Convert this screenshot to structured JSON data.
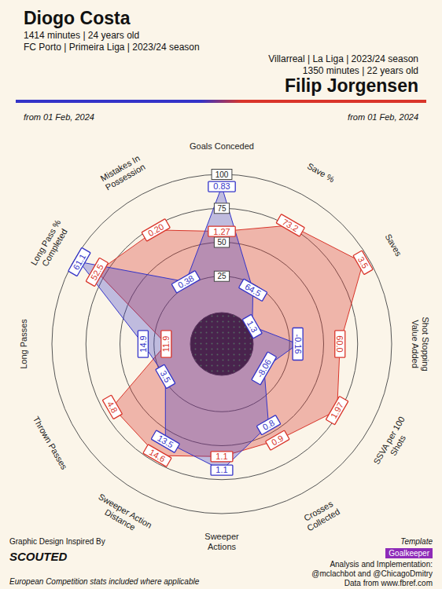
{
  "header": {
    "left_lines": [
      "1414 minutes | 24 years old",
      "FC Porto | Primeira Liga | 2023/24 season"
    ],
    "right_lines": [
      "Villarreal | La Liga | 2023/24 season",
      "1350 minutes | 22 years old"
    ],
    "left_date": "from 01 Feb, 2024",
    "right_date": "from 01 Feb, 2024"
  },
  "chart_data": {
    "type": "radar",
    "categories": [
      "Goals Conceded",
      "Save %",
      "Saves",
      "Shot Stopping Value Added",
      "SSVA per 100 Shots",
      "Crosses Collected",
      "Sweeper Actions",
      "Sweeper Action Distance",
      "Thrown Passes",
      "Long Passes",
      "Long Pass % Completed",
      "Mistakes In Possession"
    ],
    "rlim": [
      0,
      100
    ],
    "rticks": [
      25,
      50,
      75,
      100
    ],
    "grid": true,
    "data_labels": true,
    "series": [
      {
        "name": "Diogo Costa",
        "color": "#3434c8",
        "values": [
          91,
          21,
          1,
          31,
          11,
          44,
          68,
          58,
          23,
          33,
          96,
          28
        ],
        "stat_labels": [
          "0.83",
          "64.5",
          "1.3",
          "-0.16",
          "-8.06",
          "0.8",
          "1.1",
          "13.5",
          "3.5",
          "14.9",
          "61.1",
          "0.38"
        ]
      },
      {
        "name": "Filip Jorgensen",
        "color": "#d9352a",
        "values": [
          58,
          76,
          95,
          62,
          73,
          57,
          58,
          70,
          68,
          16,
          81,
          72
        ],
        "stat_labels": [
          "1.27",
          "73.2",
          "3.5",
          "60.0",
          "1.97",
          "0.9",
          "1.1",
          "14.6",
          "4.8",
          "11.9",
          "52.5",
          "0.20"
        ]
      }
    ]
  },
  "footer": {
    "credit_intro": "Graphic Design Inspired By",
    "credit_brand": "SCOUTED",
    "note": "European Competition stats included where applicable",
    "template_label": "Template",
    "template": "Goalkeeper",
    "analysis": "Analysis and Implementation:",
    "authors": "@mclachbot and @ChicagoDmitry",
    "source": "Data from www.fbref.com"
  }
}
